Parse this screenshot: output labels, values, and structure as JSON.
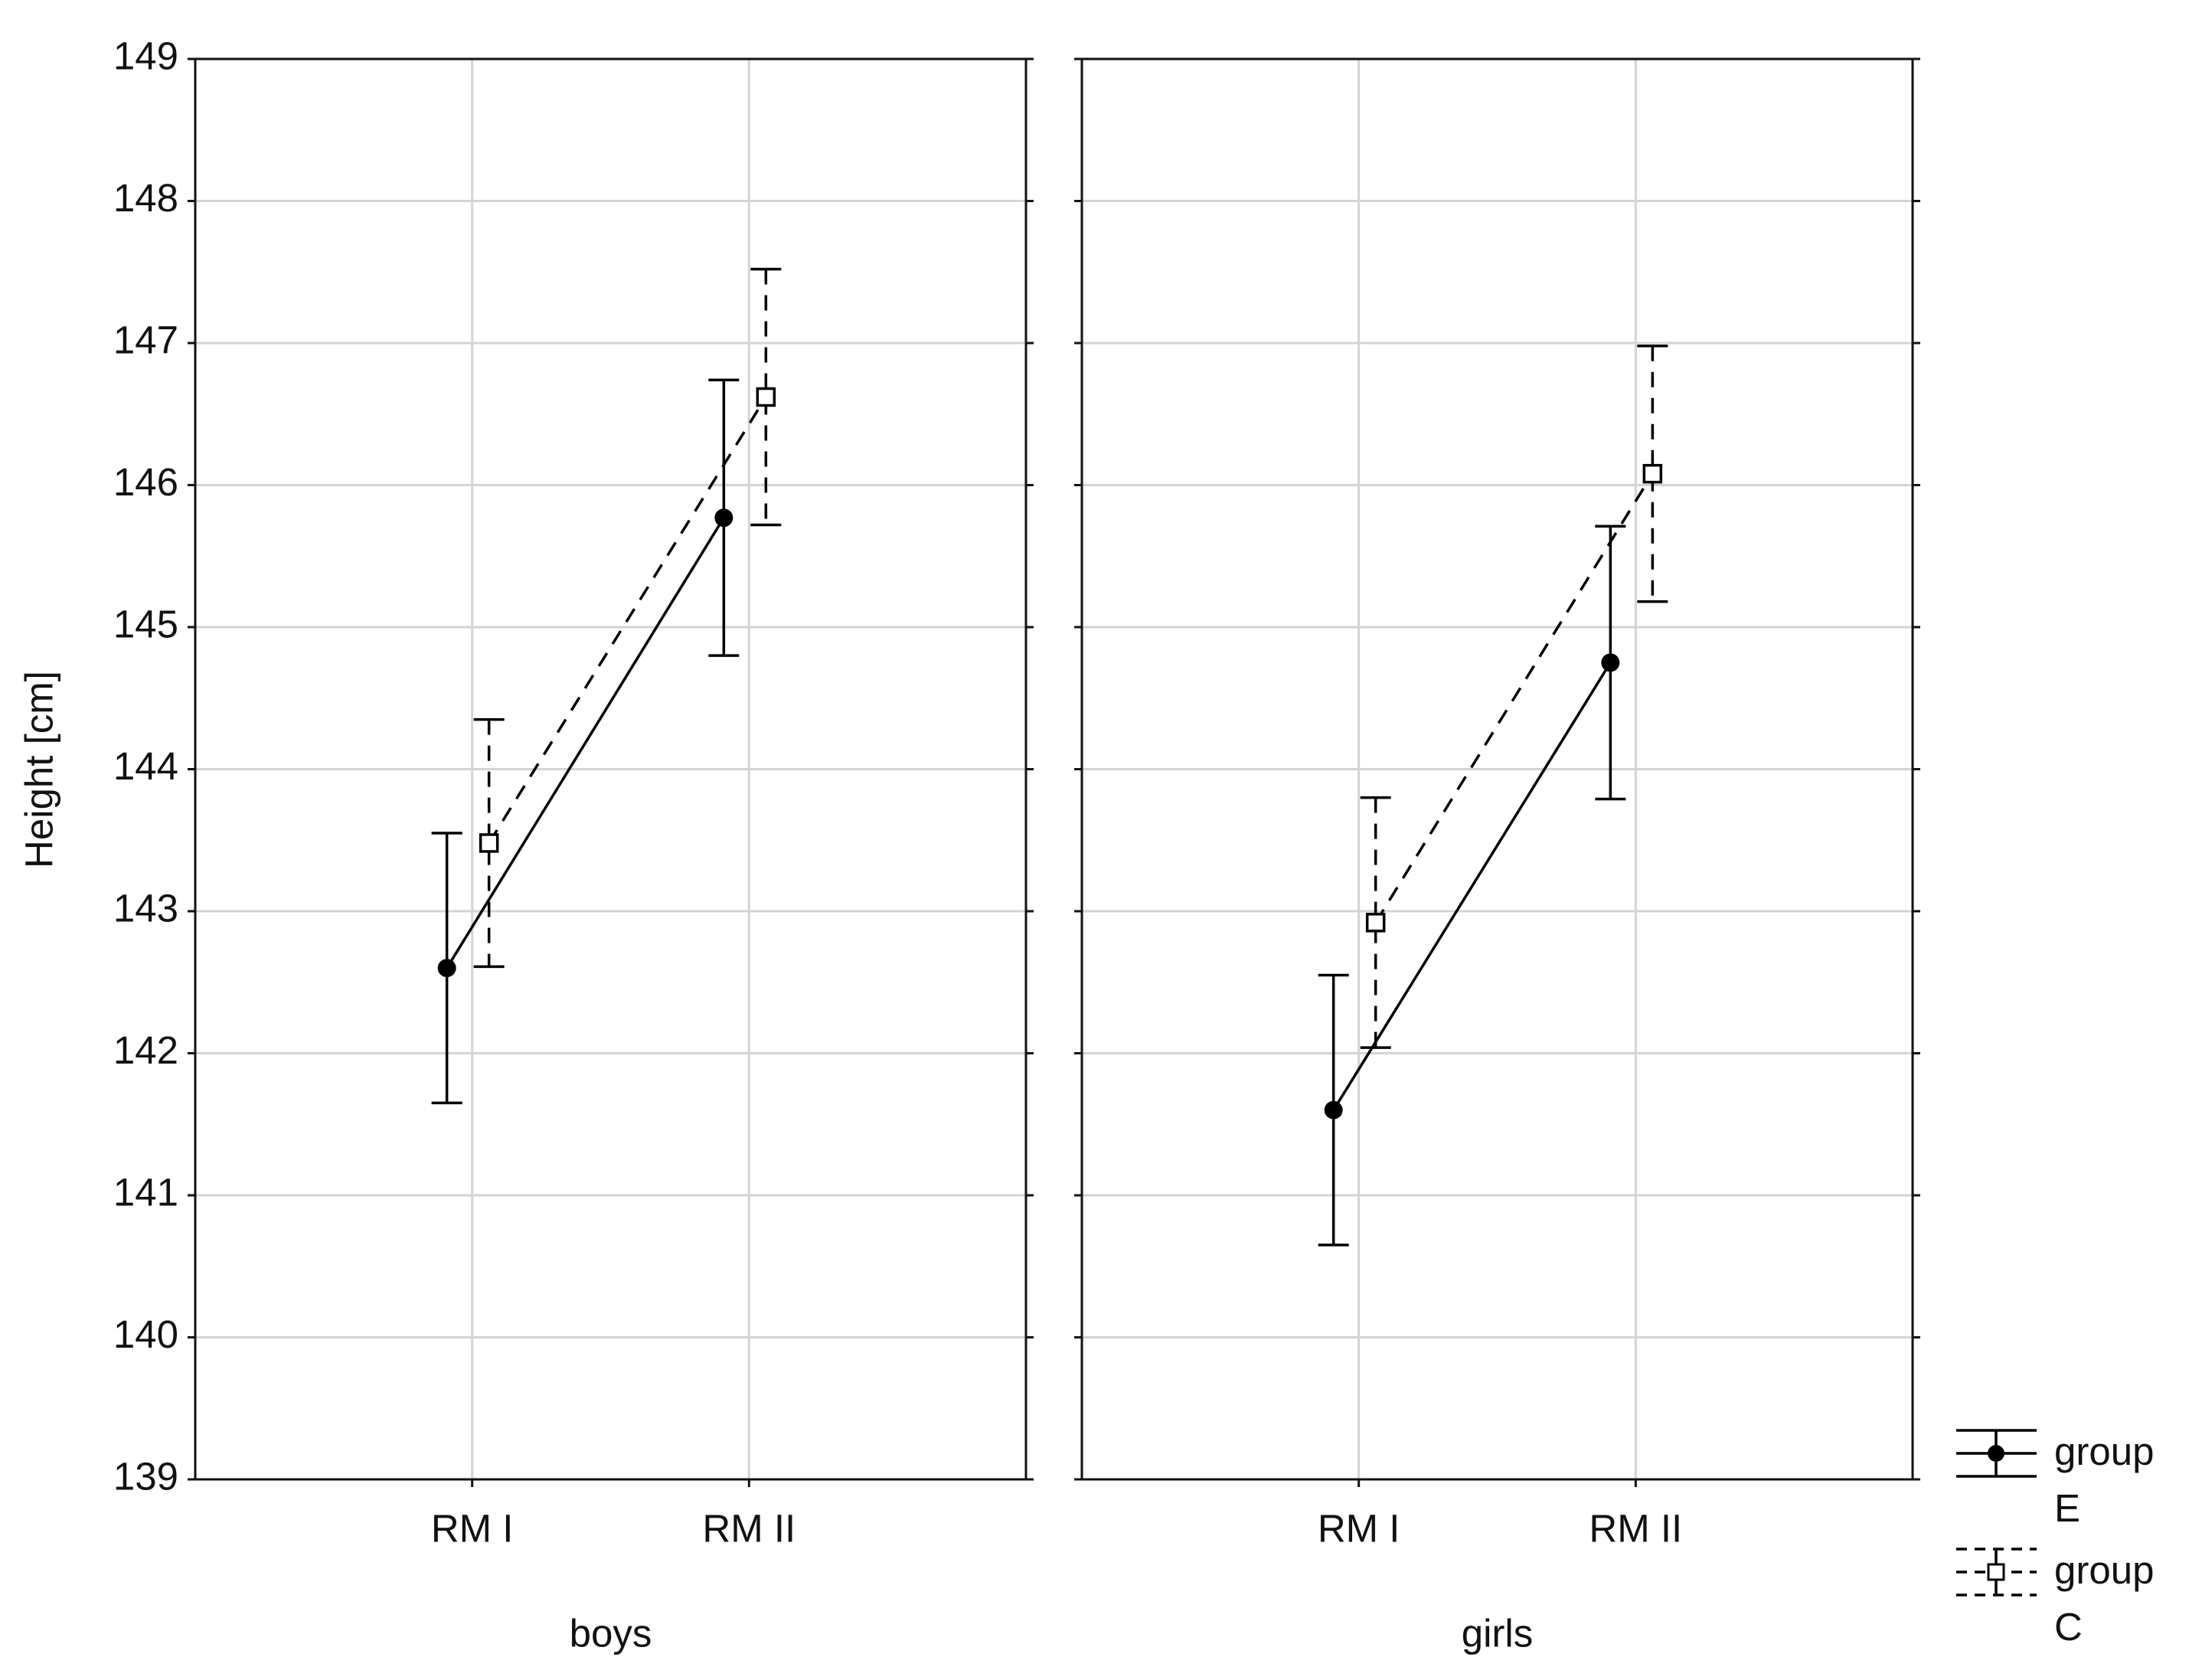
{
  "chart_data": [
    {
      "type": "line",
      "ylabel": "Height [cm]",
      "xlabel": "boys",
      "categories": [
        "RM I",
        "RM II"
      ],
      "ylim": [
        139,
        149
      ],
      "yticks": [
        139,
        140,
        141,
        142,
        143,
        144,
        145,
        146,
        147,
        148,
        149
      ],
      "grid": true,
      "series": [
        {
          "name": "group E",
          "color": "#000000",
          "line_style": "solid",
          "marker": "circle",
          "values": [
            142.6,
            145.77
          ],
          "errors": [
            0.95,
            0.97
          ]
        },
        {
          "name": "group C",
          "color": "#000000",
          "line_style": "dashed",
          "marker": "square",
          "values": [
            143.48,
            146.62
          ],
          "errors": [
            0.87,
            0.9
          ]
        }
      ]
    },
    {
      "type": "line",
      "xlabel": "girls",
      "categories": [
        "RM I",
        "RM II"
      ],
      "ylim": [
        139,
        149
      ],
      "yticks": [
        139,
        140,
        141,
        142,
        143,
        144,
        145,
        146,
        147,
        148,
        149
      ],
      "grid": true,
      "series": [
        {
          "color": "#000000",
          "line_style": "solid",
          "marker": "circle",
          "values": [
            141.6,
            144.75
          ],
          "errors": [
            0.95,
            0.96
          ]
        },
        {
          "color": "#000000",
          "line_style": "dashed",
          "marker": "square",
          "values": [
            142.92,
            146.08
          ],
          "errors": [
            0.88,
            0.9
          ]
        }
      ]
    }
  ]
}
